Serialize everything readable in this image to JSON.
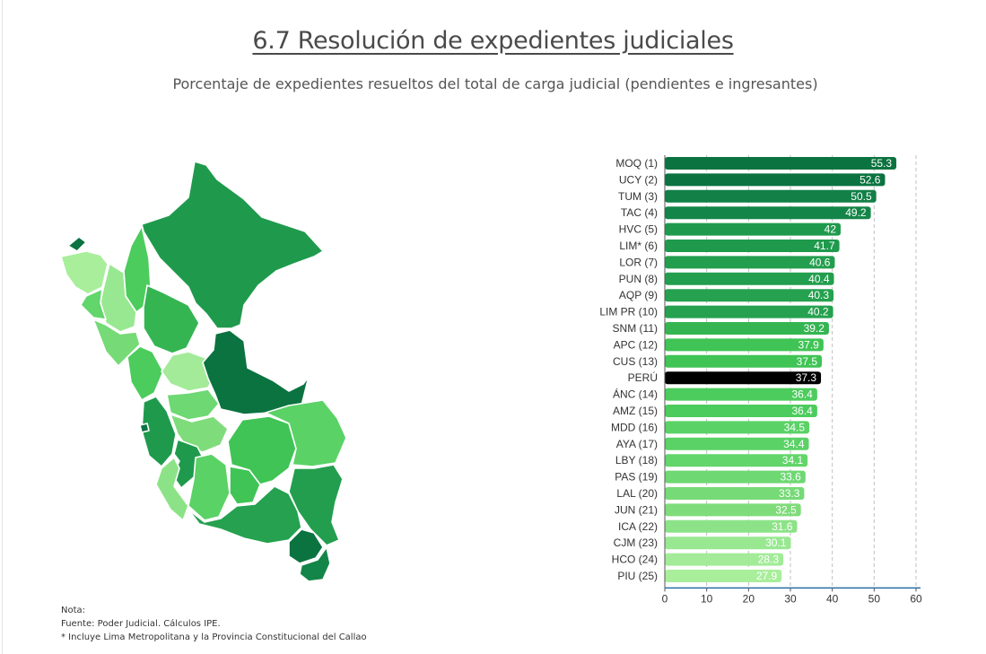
{
  "header": {
    "title": "6.7 Resolución de expedientes judiciales",
    "subtitle": "Porcentaje de expedientes resueltos del total de carga judicial (pendientes e ingresantes)"
  },
  "notes": {
    "nota": "Nota:",
    "fuente": "Fuente: Poder Judicial. Cálculos IPE.",
    "asterisk": "* Incluye Lima Metropolitana y la Provincia Constitucional del Callao"
  },
  "colors": {
    "darkest": "#0b7340",
    "dark": "#1f9a4d",
    "mid": "#3fc455",
    "light": "#7fdc7a",
    "lighter": "#a8ee9b",
    "highlight": "#000000",
    "axis": "#2a6fa8",
    "grid": "#bfbfbf"
  },
  "chart_data": {
    "type": "bar",
    "orientation": "horizontal",
    "categories": [
      "MOQ (1)",
      "UCY (2)",
      "TUM (3)",
      "TAC (4)",
      "HVC (5)",
      "LIM* (6)",
      "LOR (7)",
      "PUN (8)",
      "AQP (9)",
      "LIM PR (10)",
      "SNM (11)",
      "APC (12)",
      "CUS (13)",
      "PERÚ",
      "ÁNC (14)",
      "AMZ (15)",
      "MDD (16)",
      "AYA (17)",
      "LBY (18)",
      "PAS (19)",
      "LAL (20)",
      "JUN (21)",
      "ICA (22)",
      "CJM (23)",
      "HCO (24)",
      "PIU (25)"
    ],
    "values": [
      55.3,
      52.6,
      50.5,
      49.2,
      42,
      41.7,
      40.6,
      40.4,
      40.3,
      40.2,
      39.2,
      37.9,
      37.5,
      37.3,
      36.4,
      36.4,
      34.5,
      34.4,
      34.1,
      33.6,
      33.3,
      32.5,
      31.6,
      30.1,
      28.3,
      27.9
    ],
    "bar_colors": [
      "#0b7340",
      "#0b7340",
      "#128047",
      "#148548",
      "#1f9a4d",
      "#1f9a4d",
      "#239e4e",
      "#239e4e",
      "#25a14f",
      "#25a14f",
      "#35b552",
      "#3fc455",
      "#3fc455",
      "#000000",
      "#4ccc5c",
      "#4ccc5c",
      "#5ad266",
      "#5ad266",
      "#62d56b",
      "#6ed873",
      "#76da77",
      "#7fdc7a",
      "#8ce387",
      "#98e891",
      "#a3eb99",
      "#a8ee9b"
    ],
    "highlight_category": "PERÚ",
    "xlim": [
      0,
      60
    ],
    "xticks": [
      0,
      10,
      20,
      30,
      40,
      50,
      60
    ],
    "grid": "vertical dashed",
    "title": "",
    "xlabel": "",
    "ylabel": ""
  }
}
